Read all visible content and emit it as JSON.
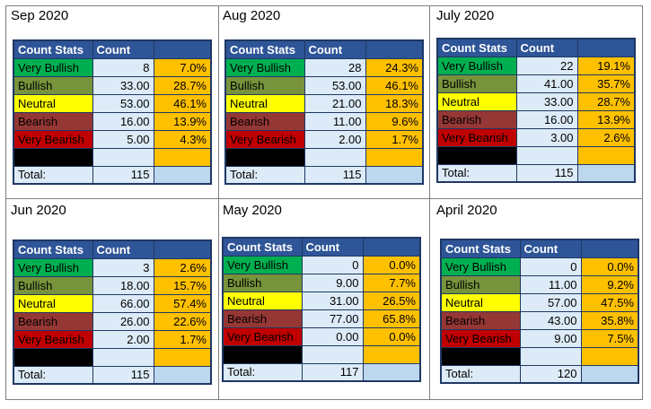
{
  "headers": {
    "stats": "Count Stats",
    "count": "Count",
    "pct": ""
  },
  "total_label": "Total:",
  "colors": {
    "very_bullish": "#00b050",
    "bullish": "#77933c",
    "neutral": "#ffff00",
    "bearish": "#953735",
    "very_bearish": "#c00000",
    "header": "#2e5597",
    "count_bg": "#dcebf7",
    "pct_bg": "#ffc000"
  },
  "panels": [
    {
      "title": "Sep 2020",
      "rows": [
        {
          "label": "Very Bullish",
          "count": "8",
          "pct": "7.0%"
        },
        {
          "label": "Bullish",
          "count": "33.00",
          "pct": "28.7%"
        },
        {
          "label": "Neutral",
          "count": "53.00",
          "pct": "46.1%"
        },
        {
          "label": "Bearish",
          "count": "16.00",
          "pct": "13.9%"
        },
        {
          "label": "Very Bearish",
          "count": "5.00",
          "pct": "4.3%"
        }
      ],
      "total": "115"
    },
    {
      "title": "Aug 2020",
      "rows": [
        {
          "label": "Very Bullish",
          "count": "28",
          "pct": "24.3%"
        },
        {
          "label": "Bullish",
          "count": "53.00",
          "pct": "46.1%"
        },
        {
          "label": "Neutral",
          "count": "21.00",
          "pct": "18.3%"
        },
        {
          "label": "Bearish",
          "count": "11.00",
          "pct": "9.6%"
        },
        {
          "label": "Very Bearish",
          "count": "2.00",
          "pct": "1.7%"
        }
      ],
      "total": "115"
    },
    {
      "title": "July 2020",
      "rows": [
        {
          "label": "Very Bullish",
          "count": "22",
          "pct": "19.1%"
        },
        {
          "label": "Bullish",
          "count": "41.00",
          "pct": "35.7%"
        },
        {
          "label": "Neutral",
          "count": "33.00",
          "pct": "28.7%"
        },
        {
          "label": "Bearish",
          "count": "16.00",
          "pct": "13.9%"
        },
        {
          "label": "Very Bearish",
          "count": "3.00",
          "pct": "2.6%"
        }
      ],
      "total": "115"
    },
    {
      "title": "Jun 2020",
      "rows": [
        {
          "label": "Very Bullish",
          "count": "3",
          "pct": "2.6%"
        },
        {
          "label": "Bullish",
          "count": "18.00",
          "pct": "15.7%"
        },
        {
          "label": "Neutral",
          "count": "66.00",
          "pct": "57.4%"
        },
        {
          "label": "Bearish",
          "count": "26.00",
          "pct": "22.6%"
        },
        {
          "label": "Very Bearish",
          "count": "2.00",
          "pct": "1.7%"
        }
      ],
      "total": "115"
    },
    {
      "title": "May 2020",
      "rows": [
        {
          "label": "Very Bullish",
          "count": "0",
          "pct": "0.0%"
        },
        {
          "label": "Bullish",
          "count": "9.00",
          "pct": "7.7%"
        },
        {
          "label": "Neutral",
          "count": "31.00",
          "pct": "26.5%"
        },
        {
          "label": "Bearish",
          "count": "77.00",
          "pct": "65.8%"
        },
        {
          "label": "Very Bearish",
          "count": "0.00",
          "pct": "0.0%"
        }
      ],
      "total": "117"
    },
    {
      "title": "April 2020",
      "rows": [
        {
          "label": "Very Bullish",
          "count": "0",
          "pct": "0.0%"
        },
        {
          "label": "Bullish",
          "count": "11.00",
          "pct": "9.2%"
        },
        {
          "label": "Neutral",
          "count": "57.00",
          "pct": "47.5%"
        },
        {
          "label": "Bearish",
          "count": "43.00",
          "pct": "35.8%"
        },
        {
          "label": "Very Bearish",
          "count": "9.00",
          "pct": "7.5%"
        }
      ],
      "total": "120"
    }
  ]
}
